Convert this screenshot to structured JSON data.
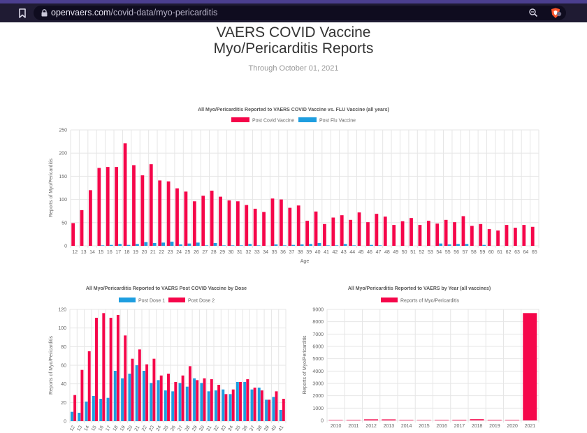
{
  "browser": {
    "url_domain": "openvaers.com",
    "url_path": "/covid-data/myo-pericarditis",
    "icons": [
      "bookmark-icon",
      "lock-icon",
      "zoom-icon",
      "brave-shield-icon"
    ]
  },
  "page": {
    "title_line1": "VAERS COVID Vaccine",
    "title_line2": "Myo/Pericarditis Reports",
    "subtitle": "Through October 01, 2021"
  },
  "colors": {
    "red": "#f5064a",
    "blue": "#1e9ee0"
  },
  "chart_data": [
    {
      "type": "bar",
      "title": "All Myo/Pericarditis Reported to VAERS COVID Vaccine vs. FLU Vaccine (all years)",
      "xlabel": "Age",
      "ylabel": "Reports of Myo/Pericarditis",
      "ylim": [
        0,
        250
      ],
      "yticks": [
        0,
        50,
        100,
        150,
        200,
        250
      ],
      "categories": [
        "12",
        "13",
        "14",
        "15",
        "16",
        "17",
        "18",
        "19",
        "20",
        "21",
        "22",
        "23",
        "24",
        "25",
        "26",
        "27",
        "28",
        "29",
        "30",
        "31",
        "32",
        "33",
        "34",
        "35",
        "36",
        "37",
        "38",
        "39",
        "40",
        "41",
        "42",
        "43",
        "44",
        "45",
        "46",
        "47",
        "48",
        "49",
        "50",
        "51",
        "52",
        "53",
        "54",
        "55",
        "56",
        "57",
        "58",
        "59",
        "60",
        "61",
        "62",
        "63",
        "64",
        "65"
      ],
      "series": [
        {
          "name": "Post Covid Vaccine",
          "color": "#f5064a",
          "values": [
            49,
            77,
            120,
            168,
            170,
            170,
            221,
            174,
            152,
            176,
            141,
            139,
            124,
            117,
            96,
            108,
            119,
            106,
            98,
            96,
            88,
            80,
            73,
            102,
            100,
            82,
            87,
            54,
            74,
            47,
            61,
            66,
            56,
            72,
            51,
            69,
            63,
            45,
            53,
            60,
            45,
            54,
            48,
            56,
            51,
            64,
            43,
            47,
            36,
            33,
            45,
            39,
            45,
            41
          ]
        },
        {
          "name": "Post Flu Vaccine",
          "color": "#1e9ee0",
          "values": [
            0,
            0,
            0,
            1,
            2,
            4,
            2,
            4,
            8,
            6,
            7,
            9,
            3,
            5,
            7,
            1,
            6,
            1,
            1,
            1,
            4,
            1,
            0,
            3,
            1,
            2,
            3,
            4,
            6,
            1,
            1,
            4,
            1,
            0,
            2,
            1,
            0,
            0,
            0,
            0,
            0,
            0,
            5,
            3,
            4,
            4,
            0,
            2,
            0,
            0,
            0,
            0,
            0,
            0
          ]
        }
      ]
    },
    {
      "type": "bar",
      "title": "All Myo/Pericarditis Reported to VAERS Post COVID Vaccine by Dose",
      "xlabel": "",
      "ylabel": "Reports of Myo/Pericarditis",
      "ylim": [
        0,
        120
      ],
      "yticks": [
        0,
        20,
        40,
        60,
        80,
        100,
        120
      ],
      "categories": [
        "12",
        "13",
        "14",
        "15",
        "16",
        "17",
        "18",
        "19",
        "20",
        "21",
        "22",
        "23",
        "24",
        "25",
        "26",
        "27",
        "28",
        "29",
        "30",
        "31",
        "32",
        "33",
        "34",
        "35",
        "36",
        "37",
        "38",
        "39",
        "40",
        "41"
      ],
      "series": [
        {
          "name": "Post Dose 1",
          "color": "#1e9ee0",
          "values": [
            10,
            9,
            21,
            27,
            24,
            25,
            54,
            46,
            51,
            60,
            54,
            41,
            44,
            33,
            32,
            41,
            37,
            46,
            41,
            32,
            33,
            34,
            29,
            42,
            42,
            34,
            36,
            23,
            26,
            12
          ]
        },
        {
          "name": "Post Dose 2",
          "color": "#f5064a",
          "values": [
            28,
            55,
            75,
            111,
            116,
            111,
            114,
            92,
            67,
            77,
            61,
            67,
            49,
            51,
            42,
            49,
            59,
            44,
            46,
            45,
            39,
            29,
            34,
            42,
            45,
            36,
            33,
            23,
            32,
            24
          ]
        }
      ]
    },
    {
      "type": "bar",
      "title": "All Myo/Pericarditis Reported to VAERS by Year (all vaccines)",
      "xlabel": "",
      "ylabel": "Reports of Myo/Pericarditis",
      "ylim": [
        0,
        9000
      ],
      "yticks": [
        0,
        1000,
        2000,
        3000,
        4000,
        5000,
        6000,
        7000,
        8000,
        9000
      ],
      "categories": [
        "2010",
        "2011",
        "2012",
        "2013",
        "2014",
        "2015",
        "2016",
        "2017",
        "2018",
        "2019",
        "2020",
        "2021"
      ],
      "series": [
        {
          "name": "Reports of Myo/Pericarditis",
          "color": "#f5064a",
          "values": [
            40,
            45,
            90,
            85,
            45,
            35,
            45,
            55,
            100,
            50,
            45,
            8700
          ]
        }
      ]
    }
  ]
}
